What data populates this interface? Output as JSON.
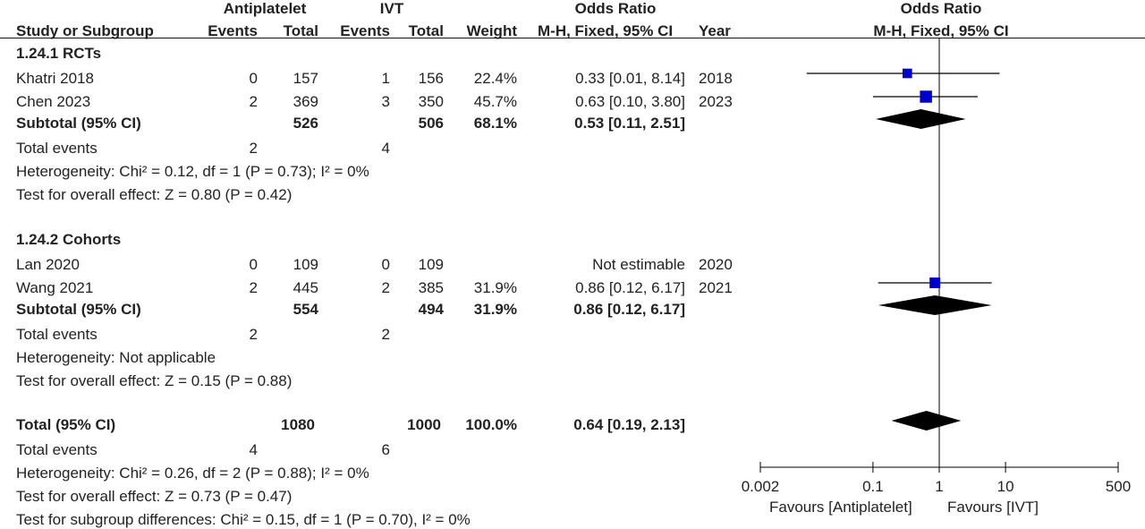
{
  "headers": {
    "group1": "Antiplatelet",
    "group2": "IVT",
    "odds_ratio_left": "Odds Ratio",
    "odds_ratio_right": "Odds Ratio",
    "study": "Study or Subgroup",
    "events1": "Events",
    "total1": "Total",
    "events2": "Events",
    "total2": "Total",
    "weight": "Weight",
    "method_left": "M-H, Fixed, 95% CI",
    "year": "Year",
    "method_right": "M-H, Fixed, 95% CI"
  },
  "subgroups": [
    {
      "title": "1.24.1 RCTs",
      "studies": [
        {
          "name": "Khatri 2018",
          "e1": "0",
          "t1": "157",
          "e2": "1",
          "t2": "156",
          "weight": "22.4%",
          "ci": "0.33 [0.01, 8.14]",
          "year": "2018"
        },
        {
          "name": "Chen 2023",
          "e1": "2",
          "t1": "369",
          "e2": "3",
          "t2": "350",
          "weight": "45.7%",
          "ci": "0.63 [0.10, 3.80]",
          "year": "2023"
        }
      ],
      "subtotal": {
        "label": "Subtotal (95% CI)",
        "t1": "526",
        "t2": "506",
        "weight": "68.1%",
        "ci": "0.53 [0.11, 2.51]"
      },
      "total_events": {
        "label": "Total events",
        "e1": "2",
        "e2": "4"
      },
      "heterogeneity": "Heterogeneity: Chi² = 0.12, df = 1 (P = 0.73); I² = 0%",
      "overall": "Test for overall effect: Z = 0.80 (P = 0.42)"
    },
    {
      "title": "1.24.2 Cohorts",
      "studies": [
        {
          "name": "Lan 2020",
          "e1": "0",
          "t1": "109",
          "e2": "0",
          "t2": "109",
          "weight": "",
          "ci": "Not estimable",
          "year": "2020"
        },
        {
          "name": "Wang 2021",
          "e1": "2",
          "t1": "445",
          "e2": "2",
          "t2": "385",
          "weight": "31.9%",
          "ci": "0.86 [0.12, 6.17]",
          "year": "2021"
        }
      ],
      "subtotal": {
        "label": "Subtotal (95% CI)",
        "t1": "554",
        "t2": "494",
        "weight": "31.9%",
        "ci": "0.86 [0.12, 6.17]"
      },
      "total_events": {
        "label": "Total events",
        "e1": "2",
        "e2": "2"
      },
      "heterogeneity": "Heterogeneity: Not applicable",
      "overall": "Test for overall effect: Z = 0.15 (P = 0.88)"
    }
  ],
  "total": {
    "label": "Total (95% CI)",
    "t1": "1080",
    "t2": "1000",
    "weight": "100.0%",
    "ci": "0.64 [0.19, 2.13]"
  },
  "total_events": {
    "label": "Total events",
    "e1": "4",
    "e2": "6"
  },
  "total_heterogeneity": "Heterogeneity: Chi² = 0.26, df = 2 (P = 0.88); I² = 0%",
  "total_overall": "Test for overall effect: Z = 0.73 (P = 0.47)",
  "subgroup_diff": "Test for subgroup differences: Chi² = 0.15, df = 1 (P = 0.70), I² = 0%",
  "axis": {
    "ticks": [
      {
        "value": 0.002,
        "label": "0.002"
      },
      {
        "value": 0.1,
        "label": "0.1"
      },
      {
        "value": 1,
        "label": "1"
      },
      {
        "value": 10,
        "label": "10"
      },
      {
        "value": 500,
        "label": "500"
      }
    ],
    "favours_left": "Favours [Antiplatelet]",
    "favours_right": "Favours [IVT]"
  },
  "colors": {
    "marker": "#0000cc",
    "diamond": "#000000",
    "line": "#000000"
  },
  "chart_data": {
    "type": "forest",
    "x_scale": "log",
    "xlim": [
      0.002,
      500
    ],
    "reference_line": 1,
    "studies": [
      {
        "name": "Khatri 2018",
        "or": 0.33,
        "lo": 0.01,
        "hi": 8.14,
        "weight": 22.4
      },
      {
        "name": "Chen 2023",
        "or": 0.63,
        "lo": 0.1,
        "hi": 3.8,
        "weight": 45.7
      },
      {
        "name": "Wang 2021",
        "or": 0.86,
        "lo": 0.12,
        "hi": 6.17,
        "weight": 31.9
      }
    ],
    "diamonds": [
      {
        "name": "Subtotal RCTs",
        "or": 0.53,
        "lo": 0.11,
        "hi": 2.51
      },
      {
        "name": "Subtotal Cohorts",
        "or": 0.86,
        "lo": 0.12,
        "hi": 6.17
      },
      {
        "name": "Total",
        "or": 0.64,
        "lo": 0.19,
        "hi": 2.13
      }
    ]
  }
}
